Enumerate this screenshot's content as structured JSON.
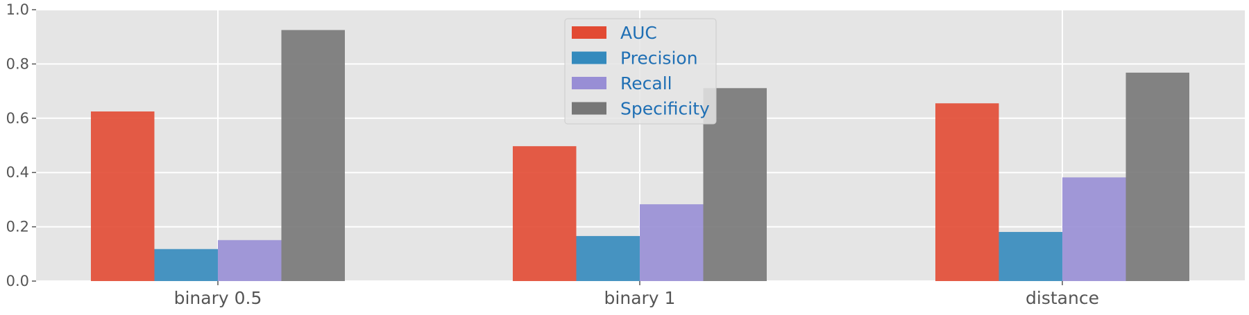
{
  "chart_data": {
    "type": "bar",
    "categories": [
      "binary 0.5",
      "binary 1",
      "distance"
    ],
    "series": [
      {
        "name": "AUC",
        "values": [
          0.625,
          0.497,
          0.655
        ],
        "color": "#e24a33"
      },
      {
        "name": "Precision",
        "values": [
          0.118,
          0.166,
          0.181
        ],
        "color": "#348abd"
      },
      {
        "name": "Recall",
        "values": [
          0.151,
          0.283,
          0.382
        ],
        "color": "#988ed5"
      },
      {
        "name": "Specificity",
        "values": [
          0.925,
          0.711,
          0.768
        ],
        "color": "#777777"
      }
    ],
    "yticks": [
      "0.0",
      "0.2",
      "0.4",
      "0.6",
      "0.8",
      "1.0"
    ],
    "ylim": [
      0,
      1.0
    ],
    "title": "",
    "xlabel": "",
    "ylabel": "",
    "grid": true,
    "legend_position": "upper center",
    "colors": {
      "plot_background": "#e5e5e5",
      "grid": "#ffffff",
      "tick_text": "#555555",
      "legend_text": "#1f6fb4"
    }
  }
}
